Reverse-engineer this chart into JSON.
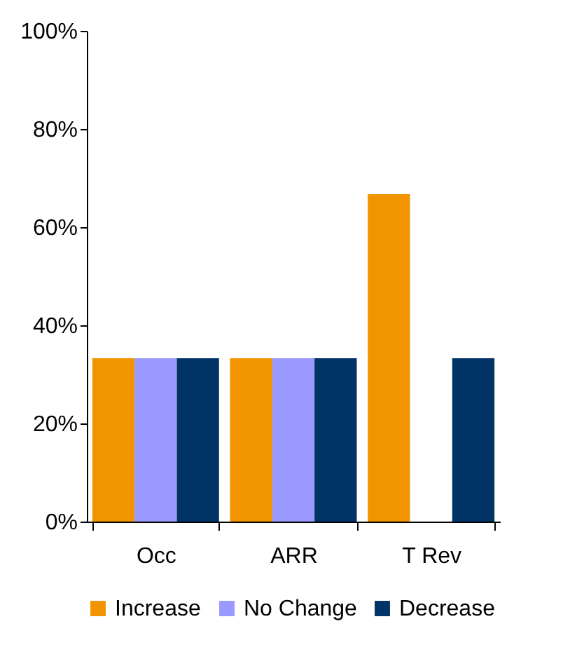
{
  "chart_data": {
    "type": "bar",
    "categories": [
      "Occ",
      "ARR",
      "T Rev"
    ],
    "series": [
      {
        "name": "Increase",
        "color": "#f29400",
        "values": [
          33.3,
          33.3,
          66.7
        ]
      },
      {
        "name": "No Change",
        "color": "#9999ff",
        "values": [
          33.3,
          33.3,
          0
        ]
      },
      {
        "name": "Decrease",
        "color": "#003366",
        "values": [
          33.3,
          33.3,
          33.3
        ]
      }
    ],
    "ylim": [
      0,
      100
    ],
    "yticks": [
      {
        "value": 0,
        "label": "0%"
      },
      {
        "value": 20,
        "label": "20%"
      },
      {
        "value": 40,
        "label": "40%"
      },
      {
        "value": 60,
        "label": "60%"
      },
      {
        "value": 80,
        "label": "80%"
      },
      {
        "value": 100,
        "label": "100%"
      }
    ],
    "grid": false,
    "legend": "bottom"
  }
}
